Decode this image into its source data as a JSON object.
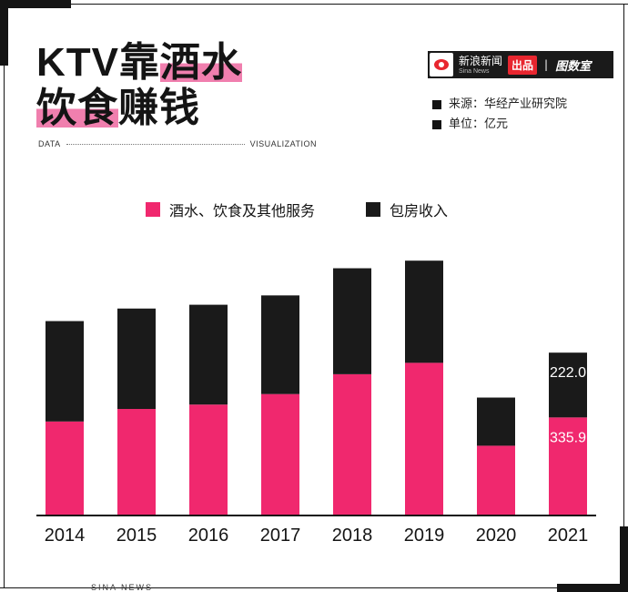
{
  "headline": {
    "line1_plain": "KTV靠",
    "line1_highlight": "酒水",
    "line2_highlight": "饮食",
    "line2_plain": "赚钱"
  },
  "data_vis": {
    "left": "DATA",
    "right": "VISUALIZATION"
  },
  "brand": {
    "name_cn": "新浪新闻",
    "name_en": "Sina News",
    "chupin": "出品",
    "separator": "|",
    "tushu": "图数室"
  },
  "meta": {
    "source": "来源：华经产业研究院",
    "unit": "单位：亿元"
  },
  "footer": "SINA NEWS",
  "colors": {
    "pink": "#f0286e",
    "black": "#1a1a1a",
    "highlight": "#f07fae"
  },
  "chart_data": {
    "type": "bar",
    "stacked": true,
    "categories": [
      "2014",
      "2015",
      "2016",
      "2017",
      "2018",
      "2019",
      "2020",
      "2021"
    ],
    "series": [
      {
        "name": "酒水、饮食及其他服务",
        "color": "#f0286e",
        "values": [
          322,
          365,
          380,
          416,
          484,
          523,
          239,
          335.9
        ],
        "labels": [
          "",
          "",
          "",
          "",
          "",
          "",
          "",
          "335.9"
        ]
      },
      {
        "name": "包房收入",
        "color": "#1a1a1a",
        "values": [
          344,
          344,
          342,
          338,
          363,
          350,
          165,
          222.0
        ],
        "labels": [
          "",
          "",
          "",
          "",
          "",
          "",
          "",
          "222.0"
        ]
      }
    ],
    "ylim": [
      0,
      880
    ],
    "grid": false,
    "legend": "top-center"
  }
}
